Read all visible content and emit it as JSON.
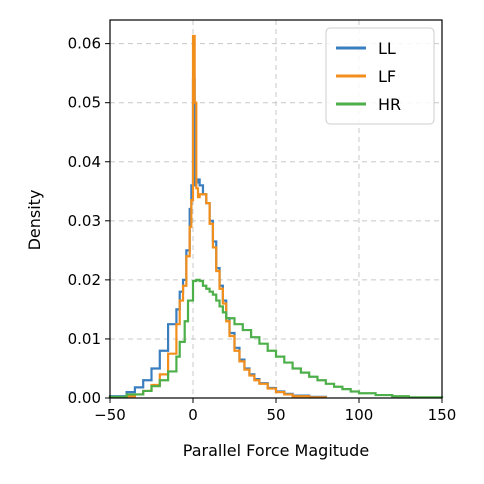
{
  "chart_data": {
    "type": "line",
    "style": "step-histogram",
    "xlabel": "Parallel Force Magitude",
    "ylabel": "Density",
    "xlim": [
      -50,
      150
    ],
    "ylim": [
      0,
      0.064
    ],
    "xticks": [
      -50,
      0,
      50,
      100,
      150
    ],
    "xtick_labels": [
      "−50",
      "0",
      "50",
      "100",
      "150"
    ],
    "yticks": [
      0,
      0.01,
      0.02,
      0.03,
      0.04,
      0.05,
      0.06
    ],
    "ytick_labels": [
      "0.00",
      "0.01",
      "0.02",
      "0.03",
      "0.04",
      "0.05",
      "0.06"
    ],
    "grid": true,
    "legend_position": "top-right",
    "series": [
      {
        "name": "LL",
        "color": "#3a7ebf",
        "bin_edges": [
          -50,
          -40,
          -35,
          -30,
          -25,
          -20,
          -15,
          -10,
          -8,
          -6,
          -4,
          -2,
          -1,
          0,
          1,
          2,
          3,
          4,
          6,
          8,
          10,
          12,
          14,
          16,
          18,
          20,
          22,
          25,
          28,
          31,
          34,
          37,
          40,
          45,
          50,
          55,
          60,
          70,
          80
        ],
        "values": [
          0.0003,
          0.001,
          0.0018,
          0.003,
          0.005,
          0.008,
          0.0125,
          0.015,
          0.018,
          0.02,
          0.025,
          0.032,
          0.036,
          0.054,
          0.036,
          0.0365,
          0.037,
          0.036,
          0.0345,
          0.033,
          0.03,
          0.0265,
          0.022,
          0.019,
          0.0165,
          0.0135,
          0.011,
          0.0085,
          0.0065,
          0.005,
          0.004,
          0.0032,
          0.0025,
          0.0017,
          0.0011,
          0.0007,
          0.0004,
          0.0002
        ]
      },
      {
        "name": "LF",
        "color": "#f28e1c",
        "bin_edges": [
          -50,
          -40,
          -35,
          -30,
          -25,
          -20,
          -15,
          -10,
          -8,
          -6,
          -4,
          -2,
          -1,
          0,
          1,
          2,
          3,
          4,
          6,
          8,
          10,
          12,
          14,
          16,
          18,
          20,
          22,
          25,
          28,
          31,
          34,
          37,
          40,
          45,
          50,
          55,
          60,
          70,
          80
        ],
        "values": [
          0.0001,
          0.0003,
          0.0006,
          0.0012,
          0.0022,
          0.004,
          0.0075,
          0.0125,
          0.0165,
          0.019,
          0.024,
          0.029,
          0.0335,
          0.0613,
          0.05,
          0.0355,
          0.034,
          0.0345,
          0.0345,
          0.033,
          0.0295,
          0.0255,
          0.0215,
          0.0185,
          0.016,
          0.013,
          0.0105,
          0.008,
          0.0062,
          0.0048,
          0.0038,
          0.003,
          0.0024,
          0.0016,
          0.001,
          0.0006,
          0.0003,
          0.0001
        ]
      },
      {
        "name": "HR",
        "color": "#4daf4a",
        "bin_edges": [
          -50,
          -40,
          -30,
          -25,
          -20,
          -15,
          -10,
          -8,
          -5,
          -3,
          0,
          2,
          4,
          6,
          8,
          10,
          12,
          14,
          16,
          18,
          20,
          25,
          30,
          35,
          40,
          45,
          50,
          55,
          60,
          65,
          70,
          75,
          80,
          85,
          90,
          95,
          100,
          110,
          120,
          130,
          150
        ],
        "values": [
          0.0002,
          0.0006,
          0.0012,
          0.002,
          0.003,
          0.0045,
          0.007,
          0.0095,
          0.013,
          0.0165,
          0.0198,
          0.02,
          0.0198,
          0.019,
          0.0185,
          0.018,
          0.0175,
          0.0165,
          0.0155,
          0.0145,
          0.0135,
          0.0125,
          0.0115,
          0.0103,
          0.0092,
          0.008,
          0.007,
          0.006,
          0.005,
          0.0043,
          0.0036,
          0.003,
          0.0024,
          0.0019,
          0.0015,
          0.0011,
          0.0008,
          0.0005,
          0.0003,
          0.0001
        ]
      }
    ]
  }
}
